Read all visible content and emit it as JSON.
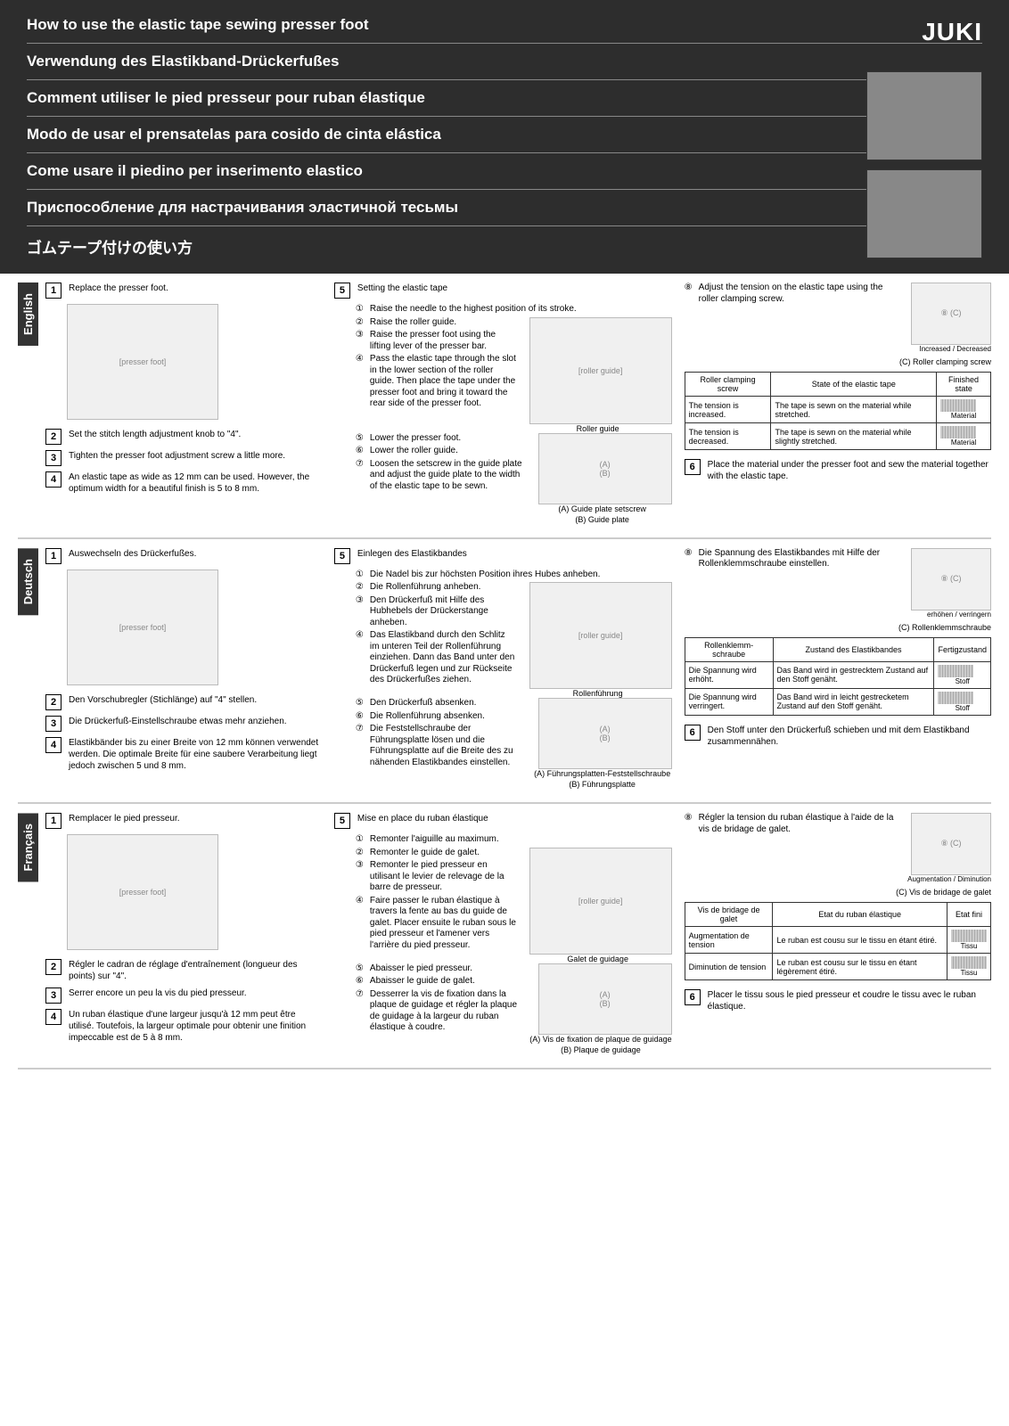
{
  "logo": "JUKI",
  "titles": {
    "en": "How to use the elastic tape sewing presser foot",
    "de": "Verwendung des Elastikband-Drückerfußes",
    "fr": "Comment utiliser le pied presseur pour ruban élastique",
    "es": "Modo de usar el prensatelas para cosido de cinta elástica",
    "it": "Come usare il piedino per inserimento elastico",
    "ru": "Приспособление для настрачивания эластичной тесьмы",
    "ja": "ゴムテープ付けの使い方"
  },
  "langs": {
    "en": {
      "tab": "English",
      "s1": "Replace the presser foot.",
      "s2": "Set the stitch length adjustment knob to \"4\".",
      "s3": "Tighten the presser foot adjustment screw a little more.",
      "s4": "An elastic tape as wide as 12 mm can be used. However, the optimum width for a beautiful finish is 5 to 8 mm.",
      "s5": "Setting the elastic tape",
      "s5_1": "Raise the needle to the highest position of its stroke.",
      "s5_2": "Raise the roller guide.",
      "s5_3": "Raise the presser foot using the lifting lever of the presser bar.",
      "s5_4": "Pass the elastic tape through the slot in the lower section of the roller guide. Then place the tape under the presser foot and bring it toward the rear side of the presser foot.",
      "s5_5": "Lower the presser foot.",
      "s5_6": "Lower the roller guide.",
      "s5_7": "Loosen the setscrew in the guide plate and adjust the guide plate to the width of the elastic tape to be sewn.",
      "roller_guide": "Roller guide",
      "capA": "(A) Guide plate setscrew",
      "capB": "(B) Guide plate",
      "s8": "Adjust the tension on the elastic tape using the roller clamping screw.",
      "inc": "Increased",
      "dec": "Decreased",
      "capC": "(C) Roller clamping screw",
      "th1": "Roller clamping screw",
      "th2": "State of the elastic tape",
      "th3": "Finished state",
      "r1c1": "The tension is increased.",
      "r1c2": "The tape is sewn on the material while stretched.",
      "r2c1": "The tension is decreased.",
      "r2c2": "The tape is sewn on the material while slightly stretched.",
      "mat": "Material",
      "s6": "Place the material under the presser foot and sew the material together with the elastic tape."
    },
    "de": {
      "tab": "Deutsch",
      "s1": "Auswechseln des Drückerfußes.",
      "s2": "Den Vorschubregler (Stichlänge) auf \"4\" stellen.",
      "s3": "Die Drückerfuß-Einstellschraube etwas mehr anziehen.",
      "s4": "Elastikbänder bis zu einer Breite von 12 mm können verwendet werden. Die optimale Breite für eine saubere Verarbeitung liegt jedoch zwischen 5 und 8 mm.",
      "s5": "Einlegen des Elastikbandes",
      "s5_1": "Die Nadel bis zur höchsten Position ihres Hubes anheben.",
      "s5_2": "Die Rollenführung anheben.",
      "s5_3": "Den Drückerfuß mit Hilfe des Hubhebels der Drückerstange anheben.",
      "s5_4": "Das Elastikband durch den Schlitz im unteren Teil der Rollenführung einziehen. Dann das Band unter den Drückerfuß legen und zur Rückseite des Drückerfußes ziehen.",
      "s5_5": "Den Drückerfuß absenken.",
      "s5_6": "Die Rollenführung absenken.",
      "s5_7": "Die Feststellschraube der Führungsplatte lösen und die Führungsplatte auf die Breite des zu nähenden Elastikbandes einstellen.",
      "roller_guide": "Rollenführung",
      "capA": "(A) Führungsplatten-Feststellschraube",
      "capB": "(B) Führungsplatte",
      "s8": "Die Spannung des Elastikbandes mit Hilfe der Rollenklemmschraube einstellen.",
      "inc": "erhöhen",
      "dec": "verringern",
      "capC": "(C) Rollenklemmschraube",
      "th1": "Rollenklemm-schraube",
      "th2": "Zustand des Elastikbandes",
      "th3": "Fertigzustand",
      "r1c1": "Die Spannung wird erhöht.",
      "r1c2": "Das Band wird in gestrecktem Zustand auf den Stoff genäht.",
      "r2c1": "Die Spannung wird verringert.",
      "r2c2": "Das Band wird in leicht gestrecketem Zustand auf den Stoff genäht.",
      "mat": "Stoff",
      "s6": "Den Stoff unter den Drückerfuß schieben und mit dem Elastikband zusammennähen."
    },
    "fr": {
      "tab": "Français",
      "s1": "Remplacer le pied presseur.",
      "s2": "Régler le cadran de réglage d'entraînement (longueur des points) sur \"4\".",
      "s3": "Serrer encore un peu la vis du pied presseur.",
      "s4": "Un ruban élastique d'une largeur jusqu'à 12 mm peut être utilisé. Toutefois, la largeur optimale pour obtenir une finition impeccable est de 5 à 8 mm.",
      "s5": "Mise en place du ruban élastique",
      "s5_1": "Remonter l'aiguille au maximum.",
      "s5_2": "Remonter le guide de galet.",
      "s5_3": "Remonter le pied presseur en utilisant le levier de relevage de la barre de presseur.",
      "s5_4": "Faire passer le ruban élastique à travers la fente au bas du guide de galet. Placer ensuite le ruban sous le pied presseur et l'amener vers l'arrière du pied presseur.",
      "s5_5": "Abaisser le pied presseur.",
      "s5_6": "Abaisser le guide de galet.",
      "s5_7": "Desserrer la vis de fixation dans la plaque de guidage et régler la plaque de guidage à la largeur du ruban élastique à coudre.",
      "roller_guide": "Galet de guidage",
      "capA": "(A) Vis de fixation de plaque de guidage",
      "capB": "(B) Plaque de guidage",
      "s8": "Régler la tension du ruban élastique à l'aide de la vis de bridage de galet.",
      "inc": "Augmentation",
      "dec": "Diminution",
      "capC": "(C) Vis de bridage de galet",
      "th1": "Vis de bridage de galet",
      "th2": "Etat du ruban élastique",
      "th3": "Etat fini",
      "r1c1": "Augmentation de tension",
      "r1c2": "Le ruban est cousu sur le tissu en étant étiré.",
      "r2c1": "Diminution de tension",
      "r2c2": "Le ruban est cousu sur le tissu en étant légèrement étiré.",
      "mat": "Tissu",
      "s6": "Placer le tissu sous le pied presseur et coudre le tissu avec le ruban élastique."
    }
  },
  "circled": [
    "①",
    "②",
    "③",
    "④",
    "⑤",
    "⑥",
    "⑦",
    "⑧"
  ]
}
